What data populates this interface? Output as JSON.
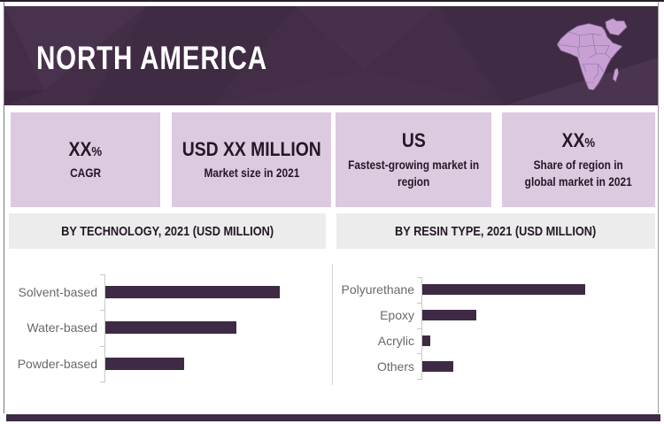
{
  "header": {
    "title": "NORTH AMERICA",
    "map_icon": "africa-middle-east-map"
  },
  "stats": [
    {
      "value": "XX",
      "suffix": "%",
      "label": "CAGR"
    },
    {
      "value": "USD XX MILLION",
      "suffix": "",
      "label": "Market size in 2021"
    },
    {
      "value": "US",
      "suffix": "",
      "label": "Fastest-growing market in\nregion"
    },
    {
      "value": "XX",
      "suffix": "%",
      "label": "Share of region in\nglobal market in 2021"
    }
  ],
  "chart_data": [
    {
      "type": "bar",
      "orientation": "horizontal",
      "title": "BY TECHNOLOGY, 2021 (USD MILLION)",
      "categories": [
        "Solvent-based",
        "Water-based",
        "Powder-based"
      ],
      "values_relative": [
        100,
        75,
        45
      ],
      "value_labels_shown": false,
      "grid": false,
      "legend": "none",
      "bar_color": "#3e2a45"
    },
    {
      "type": "bar",
      "orientation": "horizontal",
      "title": "BY RESIN TYPE, 2021 (USD MILLION)",
      "categories": [
        "Polyurethane",
        "Epoxy",
        "Acrylic",
        "Others"
      ],
      "values_relative": [
        100,
        33,
        5,
        19
      ],
      "value_labels_shown": false,
      "grid": false,
      "legend": "none",
      "bar_color": "#3e2a45"
    }
  ],
  "colors": {
    "header_background": "#442e47",
    "title_text": "#ffffff",
    "stat_box_background": "#dccae1",
    "dark_text": "#241726",
    "section_bar_background": "#ececec",
    "bar_fill": "#3e2a45",
    "map_fill": "#c8a0d3",
    "footer_bar": "#3f2b45",
    "chart_label_gray": "#696969",
    "axis_gray": "#c8c8c8"
  }
}
